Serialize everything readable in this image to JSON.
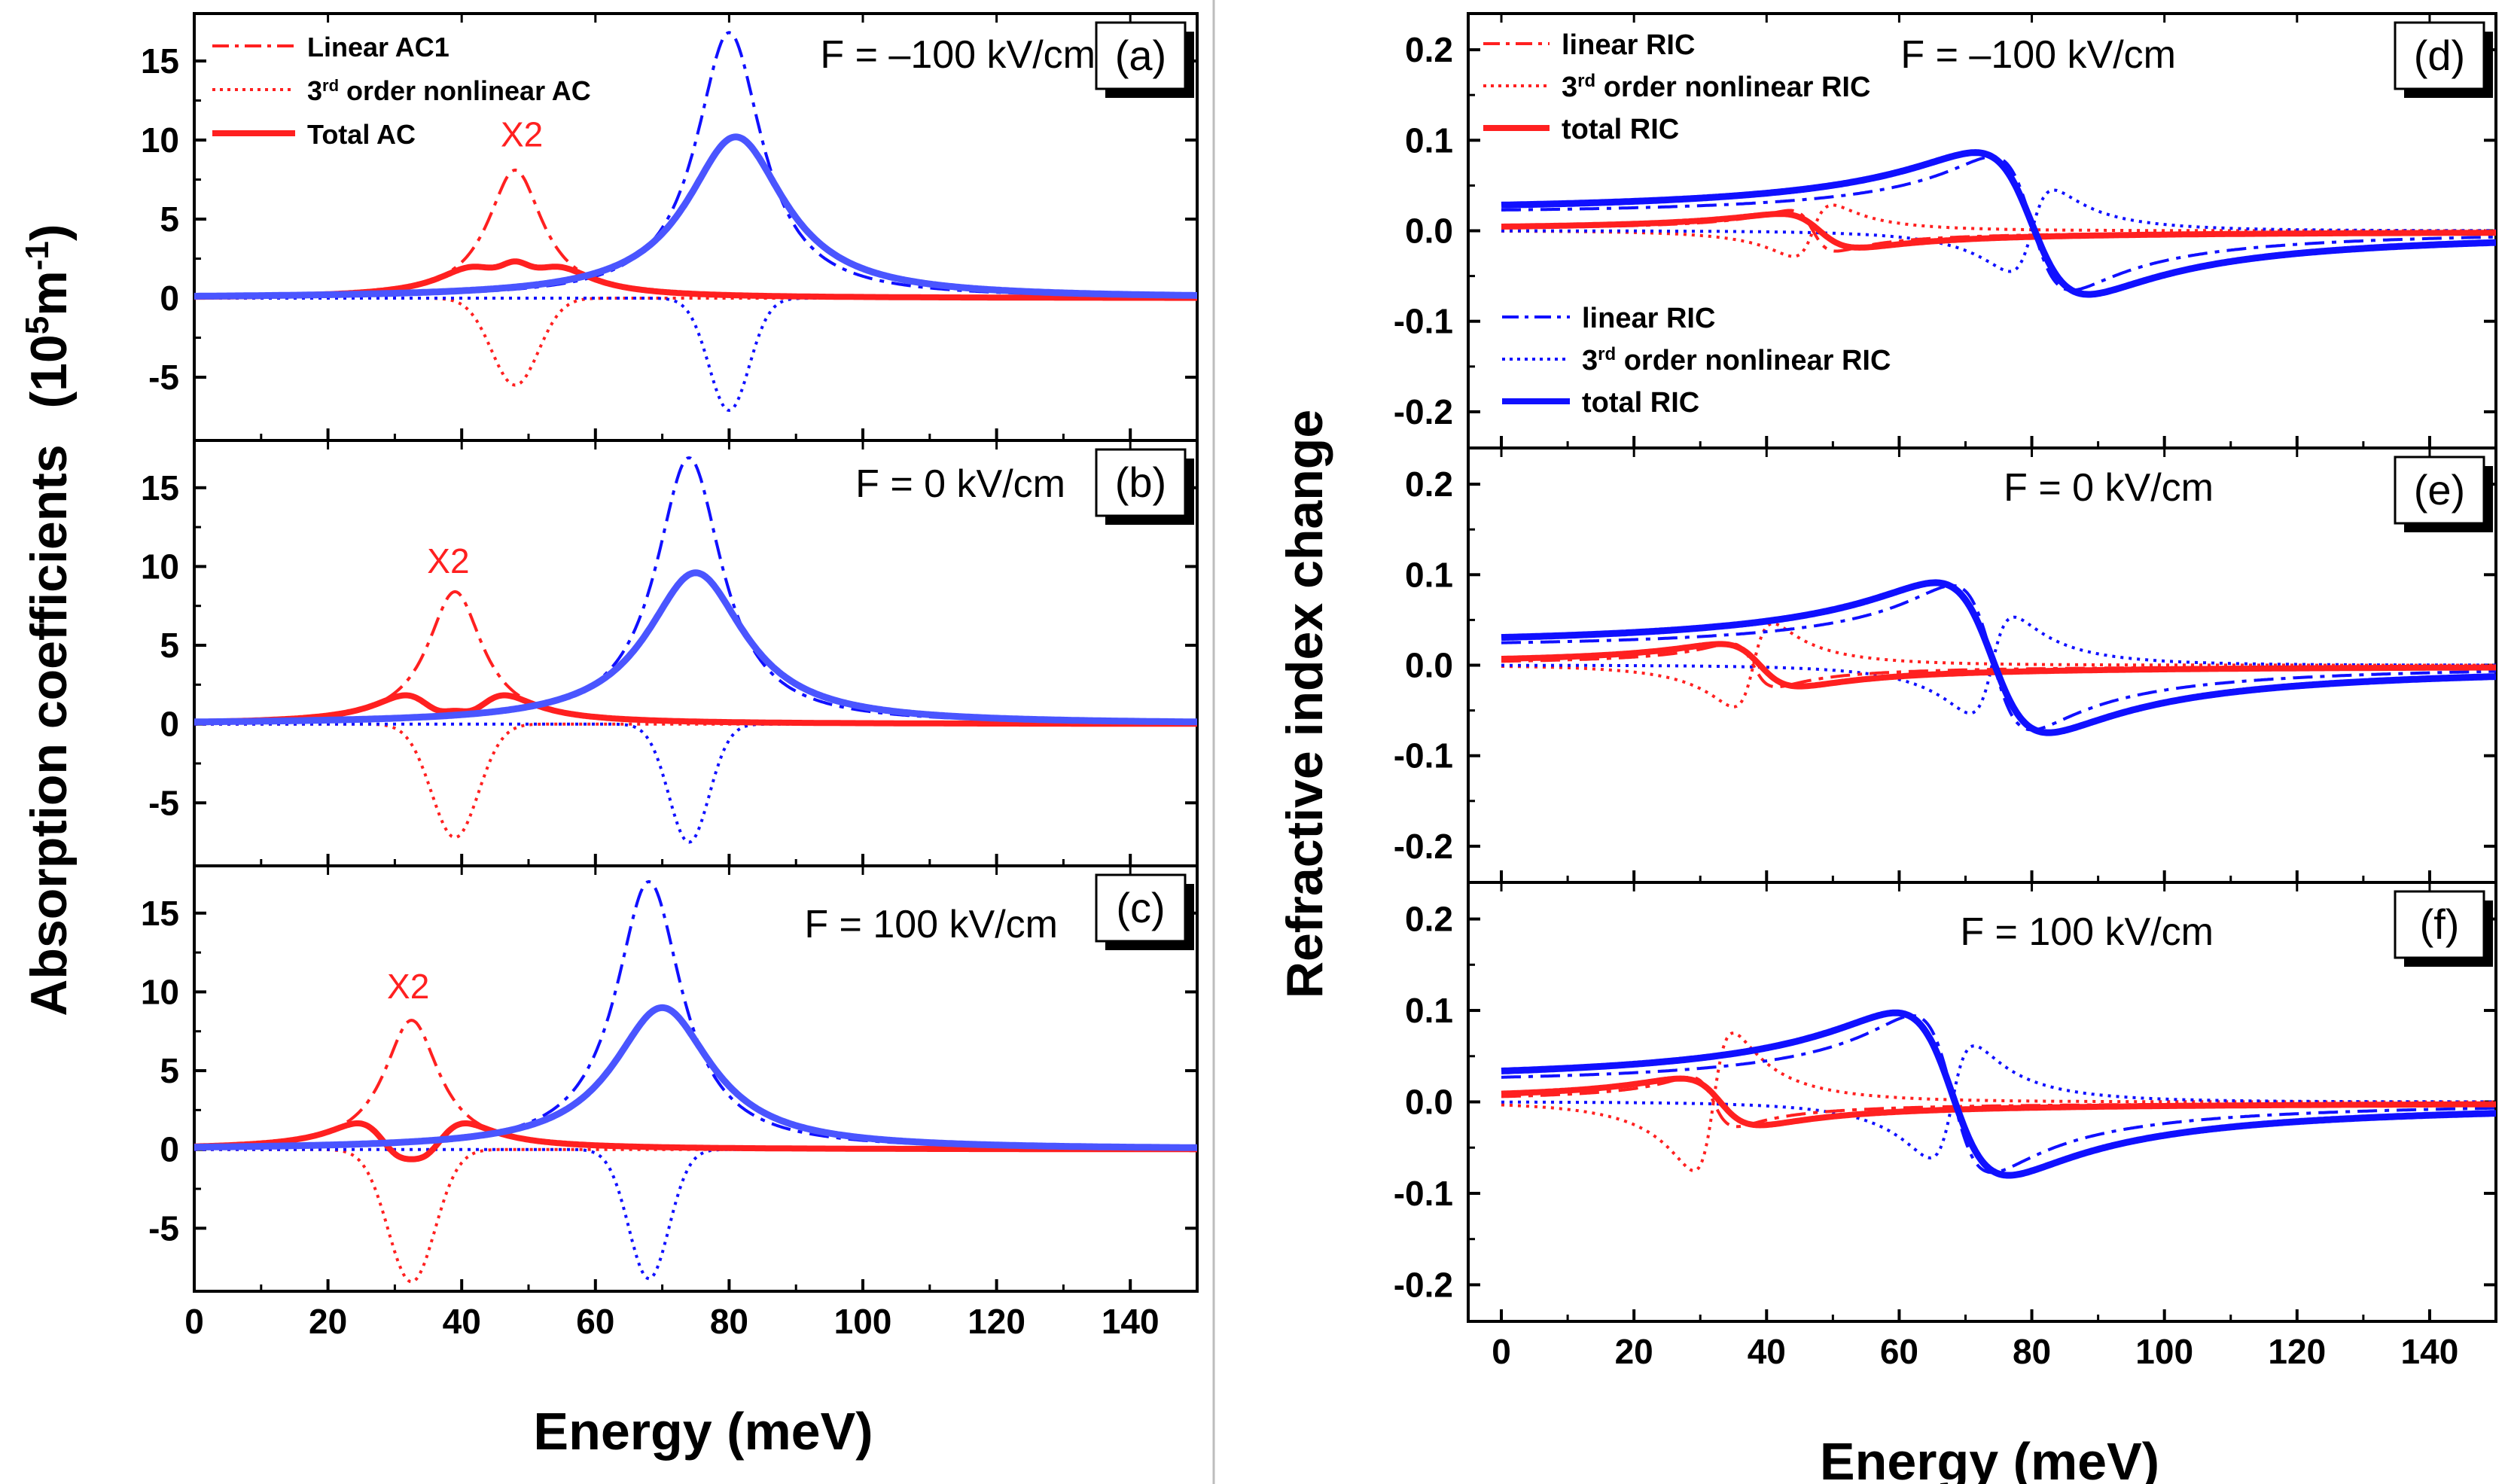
{
  "figure": {
    "left_title": "Absorption coefficients",
    "right_title": "Refractive index change"
  },
  "colors": {
    "red": "#ff2020",
    "blue": "#1010ff",
    "blue_light": "#4a55ff",
    "divider": "#bdbdbd"
  },
  "chart_data": [
    {
      "id": "a",
      "type": "line",
      "label": "(a)",
      "field": "F = –100 kV/cm",
      "xlim": [
        0,
        150
      ],
      "ylim": [
        -9,
        18
      ],
      "yticks": [
        -5,
        0,
        5,
        10,
        15
      ],
      "xticks": [
        0,
        20,
        40,
        60,
        80,
        100,
        120,
        140
      ],
      "ylabel": "Absorption coefficients (10⁵m⁻¹)",
      "xlabel": "",
      "annotation": "X2",
      "x2_at": [
        49,
        9.6
      ],
      "peaks": {
        "red_linear": [
          48,
          8.1
        ],
        "red_total_min": [
          48,
          2.6
        ],
        "blue_linear": [
          80,
          16.8
        ],
        "blue_total": [
          81,
          10.2
        ],
        "red_nonlinear_min": [
          48,
          -5.5
        ],
        "blue_nonlinear_min": [
          80,
          -7.1
        ]
      },
      "series": [
        {
          "name": "Linear AC1",
          "color": "red",
          "style": "dashdot",
          "shape": "lorentz",
          "x0": 48,
          "gamma": 5,
          "amp": 8.1
        },
        {
          "name": "3rd order nonlinear AC",
          "color": "red",
          "style": "dotted",
          "shape": "gauss",
          "x0": 48,
          "sigma": 3.5,
          "amp": -5.5
        },
        {
          "name": "Total AC",
          "color": "red",
          "style": "solid",
          "shape": "sum"
        },
        {
          "name": "Linear AC (blue)",
          "color": "blue",
          "style": "dashdot",
          "shape": "lorentz",
          "x0": 80,
          "gamma": 6,
          "amp": 16.8
        },
        {
          "name": "3rd order nonlinear AC (blue)",
          "color": "blue",
          "style": "dotted",
          "shape": "gauss",
          "x0": 80,
          "sigma": 3,
          "amp": -7.1
        },
        {
          "name": "Total AC (blue)",
          "color": "blue",
          "style": "solid",
          "shape": "lorentz",
          "x0": 81,
          "gamma": 9,
          "amp": 10.2
        }
      ],
      "legend": [
        {
          "text": "Linear AC1",
          "style": "dashdot",
          "color": "red"
        },
        {
          "text": "3",
          "sup": "rd",
          "rest": " order nonlinear AC",
          "style": "dotted",
          "color": "red"
        },
        {
          "text": "Total AC",
          "style": "solid",
          "color": "red"
        }
      ]
    },
    {
      "id": "b",
      "type": "line",
      "label": "(b)",
      "field": "F = 0 kV/cm",
      "xlim": [
        0,
        150
      ],
      "ylim": [
        -9,
        18
      ],
      "yticks": [
        -5,
        0,
        5,
        10,
        15
      ],
      "xticks": [
        0,
        20,
        40,
        60,
        80,
        100,
        120,
        140
      ],
      "annotation": "X2",
      "x2_at": [
        38,
        9.6
      ],
      "series": [
        {
          "name": "Linear AC",
          "color": "red",
          "style": "dashdot",
          "shape": "lorentz",
          "x0": 39,
          "gamma": 5,
          "amp": 8.4
        },
        {
          "name": "3rd order nonlinear AC",
          "color": "red",
          "style": "dotted",
          "shape": "gauss",
          "x0": 39,
          "sigma": 3.5,
          "amp": -7.2
        },
        {
          "name": "Total AC",
          "color": "red",
          "style": "solid",
          "shape": "sum"
        },
        {
          "name": "Linear AC (blue)",
          "color": "blue",
          "style": "dashdot",
          "shape": "lorentz",
          "x0": 74,
          "gamma": 6,
          "amp": 16.9
        },
        {
          "name": "3rd order nonlinear AC (blue)",
          "color": "blue",
          "style": "dotted",
          "shape": "gauss",
          "x0": 74,
          "sigma": 3,
          "amp": -7.5
        },
        {
          "name": "Total AC (blue)",
          "color": "blue",
          "style": "solid",
          "shape": "lorentz",
          "x0": 75,
          "gamma": 9,
          "amp": 9.6
        }
      ]
    },
    {
      "id": "c",
      "type": "line",
      "label": "(c)",
      "field": "F = 100 kV/cm",
      "xlim": [
        0,
        150
      ],
      "ylim": [
        -9,
        18
      ],
      "yticks": [
        -5,
        0,
        5,
        10,
        15
      ],
      "xticks": [
        0,
        20,
        40,
        60,
        80,
        100,
        120,
        140
      ],
      "xlabel": "Energy (meV)",
      "annotation": "X2",
      "x2_at": [
        32,
        9.6
      ],
      "series": [
        {
          "name": "Linear AC",
          "color": "red",
          "style": "dashdot",
          "shape": "lorentz",
          "x0": 32.5,
          "gamma": 5,
          "amp": 8.2
        },
        {
          "name": "3rd order nonlinear AC",
          "color": "red",
          "style": "dotted",
          "shape": "gauss",
          "x0": 32.5,
          "sigma": 3.5,
          "amp": -8.4
        },
        {
          "name": "Total AC",
          "color": "red",
          "style": "solid",
          "shape": "sum"
        },
        {
          "name": "Linear AC (blue)",
          "color": "blue",
          "style": "dashdot",
          "shape": "lorentz",
          "x0": 68,
          "gamma": 6,
          "amp": 17.0
        },
        {
          "name": "3rd order nonlinear AC (blue)",
          "color": "blue",
          "style": "dotted",
          "shape": "gauss",
          "x0": 68,
          "sigma": 3,
          "amp": -8.2
        },
        {
          "name": "Total AC (blue)",
          "color": "blue",
          "style": "solid",
          "shape": "lorentz",
          "x0": 70,
          "gamma": 9,
          "amp": 9.0
        }
      ]
    },
    {
      "id": "d",
      "type": "line",
      "label": "(d)",
      "field": "F = –100 kV/cm",
      "xlim": [
        -5,
        150
      ],
      "ylim": [
        -0.24,
        0.24
      ],
      "yticks": [
        -0.2,
        -0.1,
        0.0,
        0.1,
        0.2
      ],
      "xticks": [
        0,
        20,
        40,
        60,
        80,
        100,
        120,
        140
      ],
      "ylabel": "Refractive index change",
      "series": [
        {
          "name": "linear RIC",
          "color": "red",
          "style": "dashdot",
          "shape": "disp",
          "x0": 47,
          "gamma": 3.5,
          "scale": 0.75,
          "base": "d"
        },
        {
          "name": "3rd order nonlinear RIC",
          "color": "red",
          "style": "dotted",
          "shape": "disp0",
          "x0": 47,
          "gamma": 3.5,
          "amp": 0.034
        },
        {
          "name": "total RIC",
          "color": "red",
          "style": "solid",
          "shape": "disp",
          "x0": 48,
          "gamma": 6,
          "scale": 0.62,
          "base": "d"
        },
        {
          "name": "linear RIC (blue)",
          "color": "blue",
          "style": "dashdot",
          "shape": "disp",
          "x0": 80,
          "gamma": 6,
          "scale": 2.45,
          "base": "d"
        },
        {
          "name": "3rd order nonlinear RIC (blue)",
          "color": "blue",
          "style": "dotted",
          "shape": "disp0",
          "x0": 80,
          "gamma": 4,
          "amp": 0.055
        },
        {
          "name": "total RIC (blue)",
          "color": "blue",
          "style": "solid",
          "shape": "disp",
          "x0": 80,
          "gamma": 8.5,
          "scale": 2.6,
          "base": "d"
        }
      ],
      "legend": [
        {
          "text": "linear RIC",
          "style": "dashdot",
          "color": "red"
        },
        {
          "text": "3",
          "sup": "rd",
          "rest": " order nonlinear RIC",
          "style": "dotted",
          "color": "red"
        },
        {
          "text": "total RIC",
          "style": "solid",
          "color": "red"
        }
      ],
      "legend2": [
        {
          "text": "linear RIC",
          "style": "dashdot",
          "color": "blue"
        },
        {
          "text": "3",
          "sup": "rd",
          "rest": " order nonlinear RIC",
          "style": "dotted",
          "color": "blue"
        },
        {
          "text": "total RIC",
          "style": "solid",
          "color": "blue"
        }
      ]
    },
    {
      "id": "e",
      "type": "line",
      "label": "(e)",
      "field": "F = 0 kV/cm",
      "xlim": [
        -5,
        150
      ],
      "ylim": [
        -0.24,
        0.24
      ],
      "yticks": [
        -0.2,
        -0.1,
        0.0,
        0.1,
        0.2
      ],
      "xticks": [
        0,
        20,
        40,
        60,
        80,
        100,
        120,
        140
      ],
      "series": [
        {
          "name": "linear RIC",
          "color": "red",
          "style": "dashdot",
          "shape": "disp",
          "x0": 38,
          "gamma": 3.5,
          "scale": 0.8,
          "base": "e"
        },
        {
          "name": "3rd order nonlinear RIC",
          "color": "red",
          "style": "dotted",
          "shape": "disp0",
          "x0": 38,
          "gamma": 3.5,
          "amp": 0.055
        },
        {
          "name": "total RIC",
          "color": "red",
          "style": "solid",
          "shape": "disp",
          "x0": 39,
          "gamma": 6,
          "scale": 0.78,
          "base": "e"
        },
        {
          "name": "linear RIC (blue)",
          "color": "blue",
          "style": "dashdot",
          "shape": "disp",
          "x0": 74,
          "gamma": 6,
          "scale": 2.65,
          "base": "e"
        },
        {
          "name": "3rd order nonlinear RIC (blue)",
          "color": "blue",
          "style": "dotted",
          "shape": "disp0",
          "x0": 74,
          "gamma": 4,
          "amp": 0.065
        },
        {
          "name": "total RIC (blue)",
          "color": "blue",
          "style": "solid",
          "shape": "disp",
          "x0": 74,
          "gamma": 8.5,
          "scale": 2.75,
          "base": "e"
        }
      ]
    },
    {
      "id": "f",
      "type": "line",
      "label": "(f)",
      "field": "F = 100 kV/cm",
      "xlim": [
        -5,
        150
      ],
      "ylim": [
        -0.24,
        0.24
      ],
      "yticks": [
        -0.2,
        -0.1,
        0.0,
        0.1,
        0.2
      ],
      "xticks": [
        0,
        20,
        40,
        60,
        80,
        100,
        120,
        140
      ],
      "xlabel": "Energy (meV)",
      "series": [
        {
          "name": "linear RIC",
          "color": "red",
          "style": "dashdot",
          "shape": "disp",
          "x0": 32,
          "gamma": 3.5,
          "scale": 0.9,
          "base": "f"
        },
        {
          "name": "3rd order nonlinear RIC",
          "color": "red",
          "style": "dotted",
          "shape": "disp0",
          "x0": 32,
          "gamma": 3.5,
          "amp": 0.09
        },
        {
          "name": "total RIC",
          "color": "red",
          "style": "solid",
          "shape": "disp",
          "x0": 33,
          "gamma": 6,
          "scale": 0.85,
          "base": "f"
        },
        {
          "name": "linear RIC (blue)",
          "color": "blue",
          "style": "dashdot",
          "shape": "disp",
          "x0": 68,
          "gamma": 6,
          "scale": 2.85,
          "base": "f"
        },
        {
          "name": "3rd order nonlinear RIC (blue)",
          "color": "blue",
          "style": "dotted",
          "shape": "disp0",
          "x0": 68,
          "gamma": 4,
          "amp": 0.075
        },
        {
          "name": "total RIC (blue)",
          "color": "blue",
          "style": "solid",
          "shape": "disp",
          "x0": 68,
          "gamma": 8.5,
          "scale": 2.95,
          "base": "f"
        }
      ]
    }
  ]
}
